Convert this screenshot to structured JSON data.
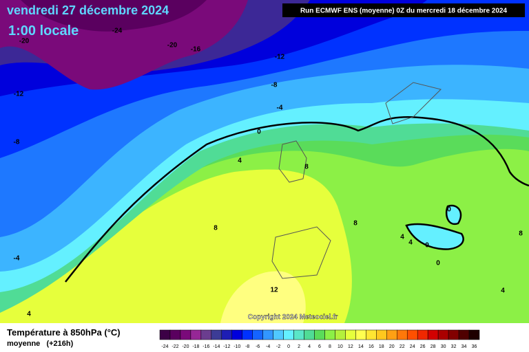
{
  "header": {
    "title": "vendredi 27 décembre 2024",
    "subtitle": "1:00 locale",
    "run": "Run ECMWF ENS (moyenne) 0Z du mercredi 18 décembre 2024"
  },
  "map": {
    "copyright": "Copyright 2024 Meteociel.fr",
    "contour_labels": [
      "-24",
      "-20",
      "-20",
      "-16",
      "-12",
      "-12",
      "-8",
      "-4",
      "0",
      "-8",
      "4",
      "8",
      "8",
      "8",
      "-4",
      "4",
      "12",
      "0",
      "0",
      "0",
      "4",
      "4",
      "4",
      "8"
    ]
  },
  "legend": {
    "title": "Température à 850hPa (°C)",
    "subtitle": "moyenne   (+216h)",
    "ticks": [
      -24,
      -22,
      -20,
      -18,
      -16,
      -14,
      -12,
      -10,
      -8,
      -6,
      -4,
      -2,
      0,
      2,
      4,
      6,
      8,
      10,
      12,
      14,
      16,
      18,
      20,
      22,
      24,
      26,
      28,
      30,
      32,
      34,
      36
    ],
    "colors": [
      "#3c0046",
      "#5a005f",
      "#7a0a7a",
      "#962796",
      "#6b3d8f",
      "#3c3c96",
      "#1e1eb4",
      "#0000dc",
      "#0032ff",
      "#1464ff",
      "#3296ff",
      "#50c8ff",
      "#64f0ff",
      "#5ae6c8",
      "#50dc96",
      "#5adc5a",
      "#8cf046",
      "#b4f03c",
      "#e6ff3c",
      "#ffff50",
      "#ffe632",
      "#ffc81e",
      "#ffa014",
      "#ff780a",
      "#ff5000",
      "#f02800",
      "#d20000",
      "#aa0000",
      "#820000",
      "#500000",
      "#1e0000"
    ]
  }
}
